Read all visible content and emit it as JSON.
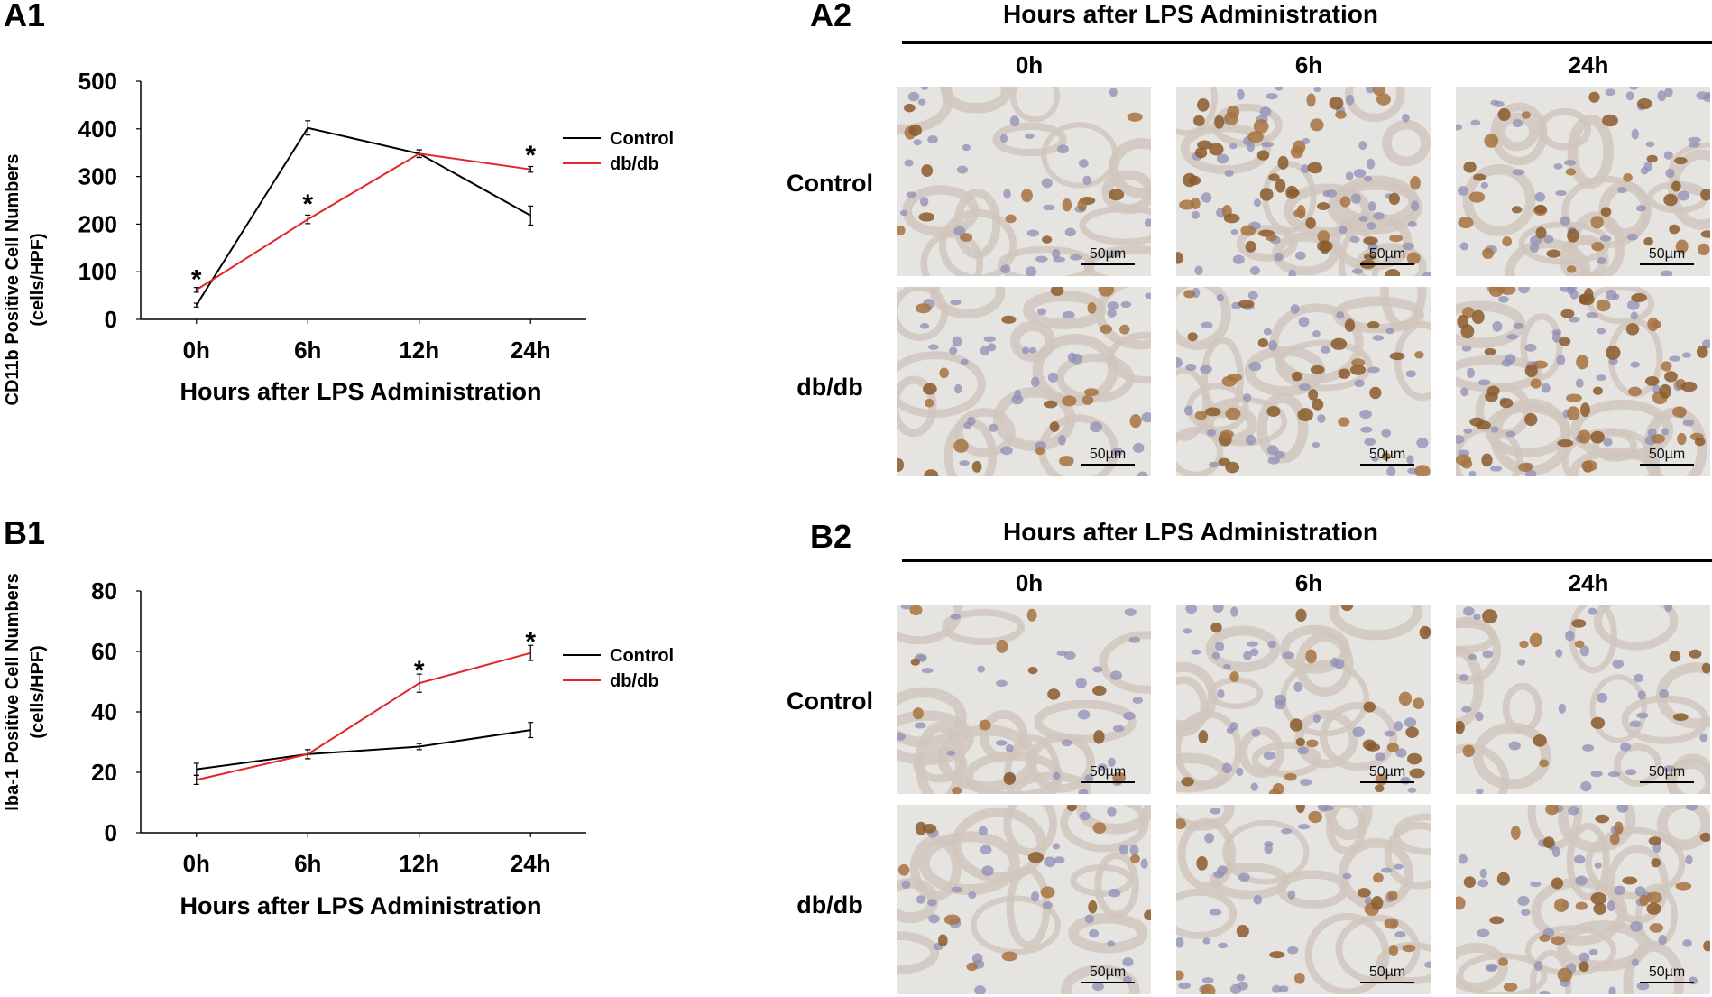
{
  "panels": {
    "a1": "A1",
    "a2": "A2",
    "b1": "B1",
    "b2": "B2"
  },
  "chart_data": [
    {
      "type": "line",
      "ylabel_line1": "CD11b Positive Cell Numbers",
      "ylabel_line2": "(cells/HPF)",
      "xlabel": "Hours after LPS Administration",
      "categories": [
        "0h",
        "6h",
        "12h",
        "24h"
      ],
      "yticks": [
        "0",
        "100",
        "200",
        "300",
        "400",
        "500"
      ],
      "ylim": [
        0,
        500
      ],
      "series": [
        {
          "name": "Control",
          "color": "#000000",
          "values": [
            30,
            402,
            348,
            218
          ],
          "errors": [
            4,
            15,
            8,
            20
          ]
        },
        {
          "name": "db/db",
          "color": "#e3262b",
          "values": [
            62,
            210,
            348,
            315
          ],
          "errors": [
            5,
            9,
            8,
            6
          ]
        }
      ],
      "significance": [
        {
          "category": "0h",
          "label": "*",
          "y": 92
        },
        {
          "category": "6h",
          "label": "*",
          "y": 250
        },
        {
          "category": "24h",
          "label": "*",
          "y": 352
        }
      ],
      "legend_position": "right"
    },
    {
      "type": "line",
      "ylabel_line1": "Iba-1 Positive Cell Numbers",
      "ylabel_line2": "(cells/HPF)",
      "xlabel": "Hours after LPS Administration",
      "categories": [
        "0h",
        "6h",
        "12h",
        "24h"
      ],
      "yticks": [
        "0",
        "20",
        "40",
        "60",
        "80"
      ],
      "ylim": [
        0,
        80
      ],
      "series": [
        {
          "name": "Control",
          "color": "#000000",
          "values": [
            21,
            26,
            28.5,
            34
          ],
          "errors": [
            2,
            1.5,
            1,
            2.5
          ]
        },
        {
          "name": "db/db",
          "color": "#e3262b",
          "values": [
            17.5,
            26,
            49.5,
            59.5
          ],
          "errors": [
            1.5,
            1.5,
            3,
            2.5
          ]
        }
      ],
      "significance": [
        {
          "category": "12h",
          "label": "*",
          "y": 55
        },
        {
          "category": "24h",
          "label": "*",
          "y": 64.5
        }
      ],
      "legend_position": "right"
    }
  ],
  "micrographs": {
    "a2": {
      "title": "Hours after LPS Administration",
      "columns": [
        "0h",
        "6h",
        "24h"
      ],
      "rows": [
        "Control",
        "db/db"
      ],
      "scale_label": "50µm"
    },
    "b2": {
      "title": "Hours after LPS Administration",
      "columns": [
        "0h",
        "6h",
        "24h"
      ],
      "rows": [
        "Control",
        "db/db"
      ],
      "scale_label": "50µm"
    }
  }
}
